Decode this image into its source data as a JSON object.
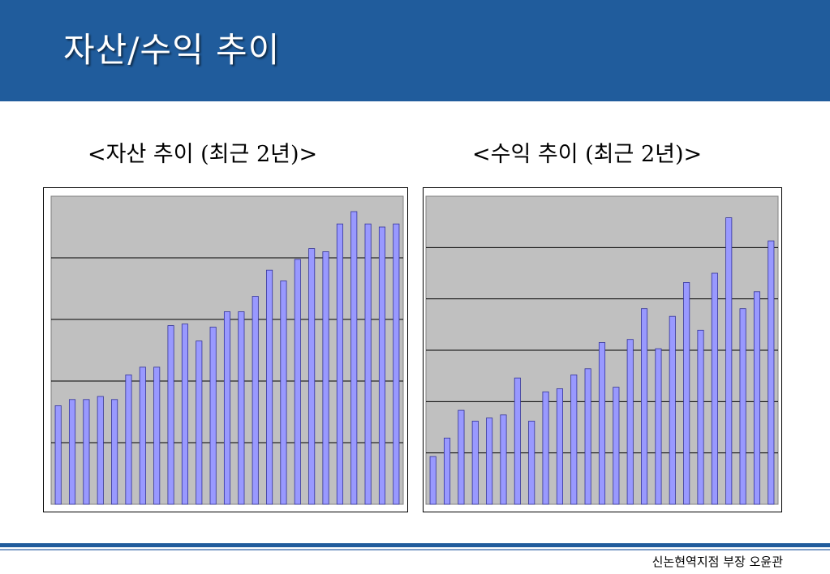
{
  "slide": {
    "title": "자산/수익 추이",
    "footer": "신논현역지점 부장 오윤관"
  },
  "colors": {
    "header": "#205c9c",
    "plot_background": "#c0c0c0",
    "bar_fill": "#9999ff",
    "bar_stroke": "#333399",
    "gridline": "#000000"
  },
  "chart_data": [
    {
      "type": "bar",
      "title": "<자산 추이 (최근 2년)>",
      "xlabel": "",
      "ylabel": "",
      "ylim": [
        0,
        100
      ],
      "grid": true,
      "grid_lines": 4,
      "legend": "none",
      "values": [
        32,
        34,
        34,
        35,
        34,
        42,
        44.5,
        44.5,
        58,
        58.5,
        53,
        57.5,
        62.5,
        62.5,
        67.5,
        76,
        72.5,
        79.5,
        83,
        82,
        91,
        95,
        91,
        90,
        91
      ]
    },
    {
      "type": "bar",
      "title": "<수익 추이 (최근 2년)>",
      "xlabel": "",
      "ylabel": "",
      "ylim": [
        0,
        100
      ],
      "grid": true,
      "grid_lines": 5,
      "legend": "none",
      "values": [
        15.5,
        21.5,
        30.5,
        27,
        28,
        29,
        41,
        27,
        36.5,
        37.5,
        42,
        44,
        52.5,
        38,
        53.5,
        63.5,
        50.5,
        61,
        72,
        56.5,
        75,
        93,
        63.5,
        69,
        85.5
      ]
    }
  ]
}
